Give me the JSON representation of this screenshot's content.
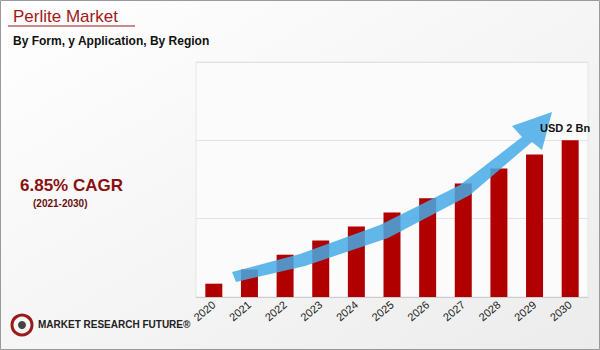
{
  "chart_data": {
    "type": "bar",
    "title": "Perlite Market",
    "subtitle": "By Form, y Application, By Region",
    "categories": [
      "2020",
      "2021",
      "2022",
      "2023",
      "2024",
      "2025",
      "2026",
      "2027",
      "2028",
      "2029",
      "2030"
    ],
    "values": [
      0.17,
      0.35,
      0.54,
      0.72,
      0.9,
      1.08,
      1.26,
      1.45,
      1.64,
      1.82,
      2.0
    ],
    "color": "#b00000",
    "ylim": [
      0,
      3
    ],
    "yticks": [
      0,
      1,
      2,
      3
    ],
    "grid": true,
    "tick_labels": "x",
    "annotations": {
      "cagr": "6.85% CAGR",
      "cagr_period": "(2021-2030)",
      "value_note": "USD 2 Bn",
      "source": "MARKET RESEARCH FUTURE®"
    }
  }
}
